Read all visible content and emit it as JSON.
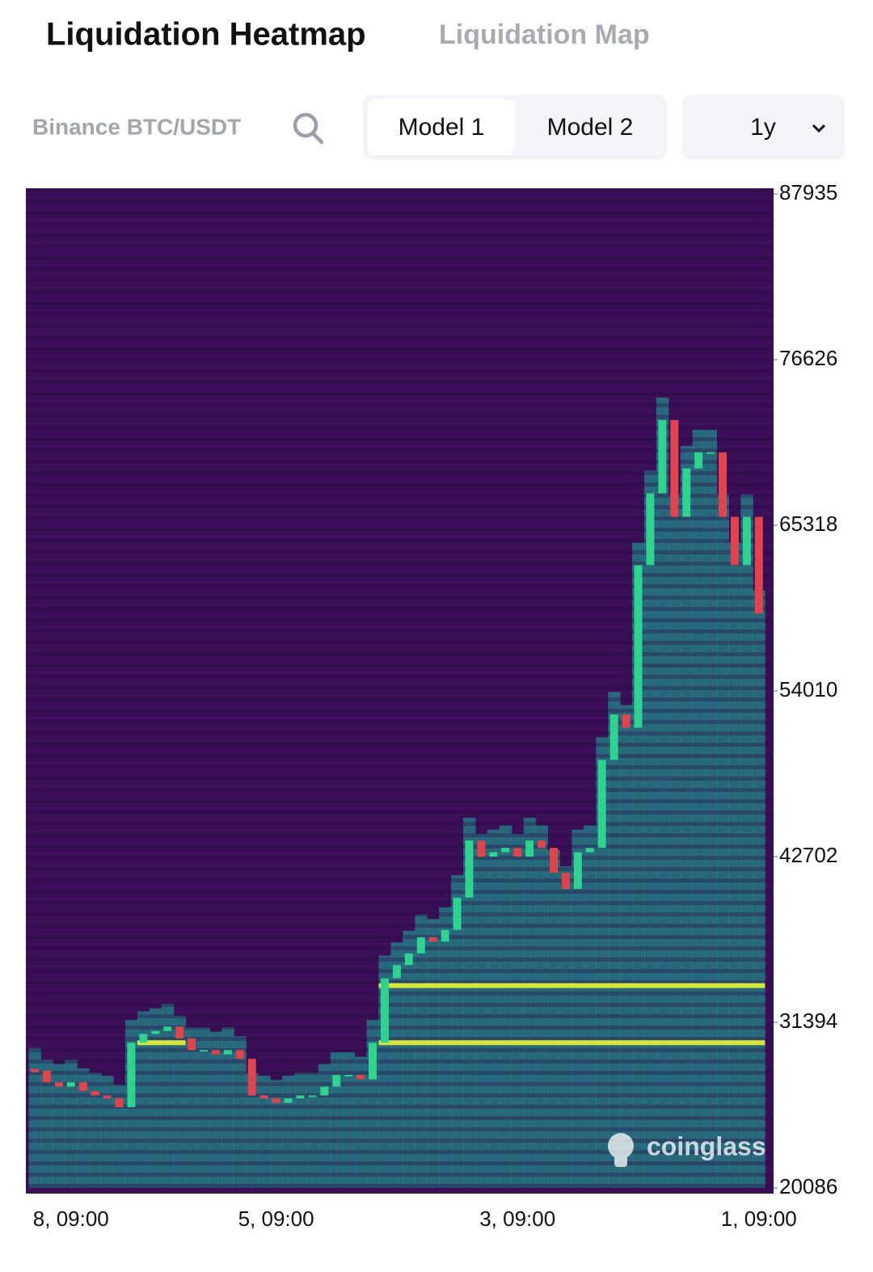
{
  "header": {
    "tabs": [
      "Liquidation Heatmap",
      "Liquidation Map"
    ]
  },
  "controls": {
    "pair": "Binance BTC/USDT",
    "models": [
      "Model 1",
      "Model 2"
    ],
    "range": "1y"
  },
  "chart_data": {
    "type": "heatmap",
    "x": [
      null,
      null,
      null,
      "8, 09:00",
      null,
      null,
      null,
      null,
      null,
      null,
      null,
      null,
      null,
      null,
      null,
      null,
      null,
      null,
      null,
      null,
      "5, 09:00",
      null,
      null,
      null,
      null,
      null,
      null,
      null,
      null,
      null,
      null,
      null,
      null,
      null,
      null,
      null,
      null,
      null,
      null,
      null,
      "3, 09:00",
      null,
      null,
      null,
      null,
      null,
      null,
      null,
      null,
      null,
      null,
      null,
      null,
      null,
      null,
      null,
      null,
      null,
      null,
      null,
      "1, 09:00"
    ],
    "values": [
      28100,
      27300,
      27000,
      27300,
      26700,
      26400,
      26200,
      25600,
      30000,
      30600,
      30800,
      31100,
      30300,
      29500,
      29500,
      29200,
      29500,
      28900,
      26400,
      26200,
      25900,
      26200,
      26400,
      26400,
      27000,
      27800,
      27800,
      27500,
      30000,
      34400,
      35300,
      36100,
      37200,
      36900,
      37700,
      39900,
      43800,
      42700,
      43000,
      43300,
      42700,
      43800,
      43300,
      41600,
      40500,
      43000,
      43300,
      49300,
      52400,
      51500,
      62600,
      67500,
      72500,
      65900,
      69200,
      70300,
      70300,
      65900,
      62600,
      65900,
      59300
    ],
    "ylim": [
      20086,
      87935
    ],
    "yticks": [
      87935,
      76626,
      65318,
      54010,
      42702,
      31394,
      20086
    ],
    "highlight_levels": [
      33900,
      30000
    ],
    "colors": {
      "up": "#2fd38f",
      "down": "#e2434c",
      "background": "#3b0f58",
      "zone": "#1f8f8c",
      "level": "#d8e63b"
    },
    "watermark": "coinglass"
  }
}
